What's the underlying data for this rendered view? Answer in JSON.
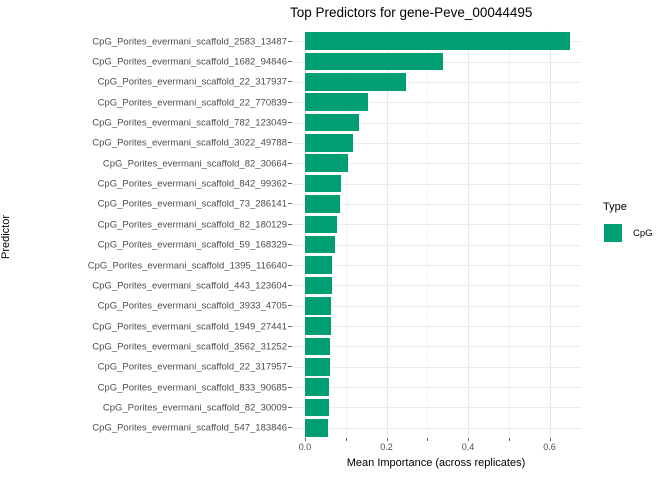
{
  "title": "Top Predictors for gene-Peve_00044495",
  "chart_data": {
    "type": "bar",
    "orientation": "horizontal",
    "title": "Top Predictors for gene-Peve_00044495",
    "xlabel": "Mean Importance (across replicates)",
    "ylabel": "Predictor",
    "xlim": [
      0,
      0.677
    ],
    "xticks": [
      0.0,
      0.2,
      0.4,
      0.6
    ],
    "xtick_labels": [
      "0.0",
      "0.2",
      "0.4",
      "0.6"
    ],
    "minor_xticks": [
      0.1,
      0.3,
      0.5
    ],
    "axis_tick_positions": [
      0.0,
      0.1,
      0.2,
      0.3,
      0.4,
      0.5,
      0.6
    ],
    "grid": true,
    "legend_position": "right",
    "legend": {
      "title": "Type",
      "entries": [
        {
          "label": "CpG",
          "color": "#009E73"
        }
      ]
    },
    "bar_color": "#009E73",
    "categories": [
      "CpG_Porites_evermani_scaffold_2583_13487",
      "CpG_Porites_evermani_scaffold_1682_94846",
      "CpG_Porites_evermani_scaffold_22_317937",
      "CpG_Porites_evermani_scaffold_22_770839",
      "CpG_Porites_evermani_scaffold_782_123049",
      "CpG_Porites_evermani_scaffold_3022_49788",
      "CpG_Porites_evermani_scaffold_82_30664",
      "CpG_Porites_evermani_scaffold_842_99362",
      "CpG_Porites_evermani_scaffold_73_286141",
      "CpG_Porites_evermani_scaffold_82_180129",
      "CpG_Porites_evermani_scaffold_59_168329",
      "CpG_Porites_evermani_scaffold_1395_116640",
      "CpG_Porites_evermani_scaffold_443_123604",
      "CpG_Porites_evermani_scaffold_3933_4705",
      "CpG_Porites_evermani_scaffold_1949_27441",
      "CpG_Porites_evermani_scaffold_3562_31252",
      "CpG_Porites_evermani_scaffold_22_317957",
      "CpG_Porites_evermani_scaffold_833_90685",
      "CpG_Porites_evermani_scaffold_82_30009",
      "CpG_Porites_evermani_scaffold_547_183846"
    ],
    "values": [
      0.65,
      0.338,
      0.248,
      0.155,
      0.132,
      0.118,
      0.105,
      0.088,
      0.085,
      0.079,
      0.073,
      0.067,
      0.066,
      0.065,
      0.064,
      0.062,
      0.061,
      0.06,
      0.058,
      0.057
    ]
  },
  "colors": {
    "bar": "#009E73",
    "grid_major": "#e8e8e8",
    "grid_minor": "#f2f2f2",
    "tick_label": "#4d4d4d"
  }
}
